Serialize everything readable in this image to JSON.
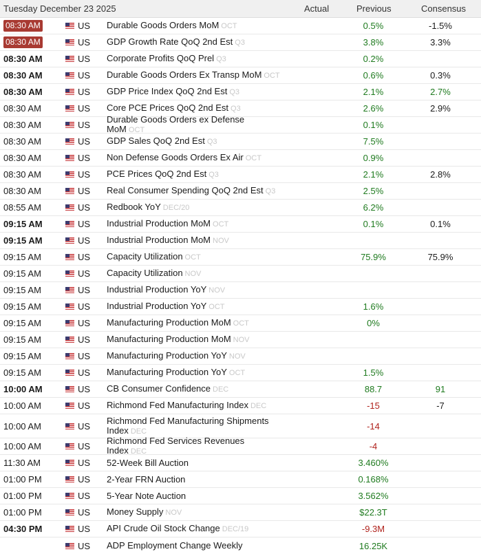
{
  "header": {
    "date": "Tuesday December 23 2025",
    "actual": "Actual",
    "previous": "Previous",
    "consensus": "Consensus"
  },
  "colors": {
    "positive": "#1e7a1e",
    "negative": "#b0221c",
    "badge": "#a83a32"
  },
  "rows": [
    {
      "time": "08:30 AM",
      "style": "badge",
      "flag": "us-flag-icon",
      "country": "US",
      "event": "Durable Goods Orders MoM",
      "period": "OCT",
      "actual": "",
      "previous": "0.5%",
      "previous_color": "green",
      "consensus": "-1.5%",
      "consensus_color": "black"
    },
    {
      "time": "08:30 AM",
      "style": "badge",
      "flag": "us-flag-icon",
      "country": "US",
      "event": "GDP Growth Rate QoQ 2nd Est",
      "period": "Q3",
      "actual": "",
      "previous": "3.8%",
      "previous_color": "green",
      "consensus": "3.3%",
      "consensus_color": "black"
    },
    {
      "time": "08:30 AM",
      "style": "bold",
      "flag": "us-flag-icon",
      "country": "US",
      "event": "Corporate Profits QoQ Prel",
      "period": "Q3",
      "actual": "",
      "previous": "0.2%",
      "previous_color": "green",
      "consensus": "",
      "consensus_color": "black"
    },
    {
      "time": "08:30 AM",
      "style": "bold",
      "flag": "us-flag-icon",
      "country": "US",
      "event": "Durable Goods Orders Ex Transp MoM",
      "period": "OCT",
      "actual": "",
      "previous": "0.6%",
      "previous_color": "green",
      "consensus": "0.3%",
      "consensus_color": "black"
    },
    {
      "time": "08:30 AM",
      "style": "bold",
      "flag": "us-flag-icon",
      "country": "US",
      "event": "GDP Price Index QoQ 2nd Est",
      "period": "Q3",
      "actual": "",
      "previous": "2.1%",
      "previous_color": "green",
      "consensus": "2.7%",
      "consensus_color": "green"
    },
    {
      "time": "08:30 AM",
      "style": "normal",
      "flag": "us-flag-icon",
      "country": "US",
      "event": "Core PCE Prices QoQ 2nd Est",
      "period": "Q3",
      "actual": "",
      "previous": "2.6%",
      "previous_color": "green",
      "consensus": "2.9%",
      "consensus_color": "black"
    },
    {
      "time": "08:30 AM",
      "style": "normal",
      "flag": "us-flag-icon",
      "country": "US",
      "event": "Durable Goods Orders ex Defense MoM",
      "period": "OCT",
      "actual": "",
      "previous": "0.1%",
      "previous_color": "green",
      "consensus": "",
      "consensus_color": "black"
    },
    {
      "time": "08:30 AM",
      "style": "normal",
      "flag": "us-flag-icon",
      "country": "US",
      "event": "GDP Sales QoQ 2nd Est",
      "period": "Q3",
      "actual": "",
      "previous": "7.5%",
      "previous_color": "green",
      "consensus": "",
      "consensus_color": "black"
    },
    {
      "time": "08:30 AM",
      "style": "normal",
      "flag": "us-flag-icon",
      "country": "US",
      "event": "Non Defense Goods Orders Ex Air",
      "period": "OCT",
      "actual": "",
      "previous": "0.9%",
      "previous_color": "green",
      "consensus": "",
      "consensus_color": "black"
    },
    {
      "time": "08:30 AM",
      "style": "normal",
      "flag": "us-flag-icon",
      "country": "US",
      "event": "PCE Prices QoQ 2nd Est",
      "period": "Q3",
      "actual": "",
      "previous": "2.1%",
      "previous_color": "green",
      "consensus": "2.8%",
      "consensus_color": "black"
    },
    {
      "time": "08:30 AM",
      "style": "normal",
      "flag": "us-flag-icon",
      "country": "US",
      "event": "Real Consumer Spending QoQ 2nd Est",
      "period": "Q3",
      "actual": "",
      "previous": "2.5%",
      "previous_color": "green",
      "consensus": "",
      "consensus_color": "black"
    },
    {
      "time": "08:55 AM",
      "style": "normal",
      "flag": "us-flag-icon",
      "country": "US",
      "event": "Redbook YoY",
      "period": "DEC/20",
      "actual": "",
      "previous": "6.2%",
      "previous_color": "green",
      "consensus": "",
      "consensus_color": "black"
    },
    {
      "time": "09:15 AM",
      "style": "bold",
      "flag": "us-flag-icon",
      "country": "US",
      "event": "Industrial Production MoM",
      "period": "OCT",
      "actual": "",
      "previous": "0.1%",
      "previous_color": "green",
      "consensus": "0.1%",
      "consensus_color": "black"
    },
    {
      "time": "09:15 AM",
      "style": "bold",
      "flag": "us-flag-icon",
      "country": "US",
      "event": "Industrial Production MoM",
      "period": "NOV",
      "actual": "",
      "previous": "",
      "previous_color": "green",
      "consensus": "",
      "consensus_color": "black"
    },
    {
      "time": "09:15 AM",
      "style": "normal",
      "flag": "us-flag-icon",
      "country": "US",
      "event": "Capacity Utilization",
      "period": "OCT",
      "actual": "",
      "previous": "75.9%",
      "previous_color": "green",
      "consensus": "75.9%",
      "consensus_color": "black"
    },
    {
      "time": "09:15 AM",
      "style": "normal",
      "flag": "us-flag-icon",
      "country": "US",
      "event": "Capacity Utilization",
      "period": "NOV",
      "actual": "",
      "previous": "",
      "previous_color": "green",
      "consensus": "",
      "consensus_color": "black"
    },
    {
      "time": "09:15 AM",
      "style": "normal",
      "flag": "us-flag-icon",
      "country": "US",
      "event": "Industrial Production YoY",
      "period": "NOV",
      "actual": "",
      "previous": "",
      "previous_color": "green",
      "consensus": "",
      "consensus_color": "black"
    },
    {
      "time": "09:15 AM",
      "style": "normal",
      "flag": "us-flag-icon",
      "country": "US",
      "event": "Industrial Production YoY",
      "period": "OCT",
      "actual": "",
      "previous": "1.6%",
      "previous_color": "green",
      "consensus": "",
      "consensus_color": "black"
    },
    {
      "time": "09:15 AM",
      "style": "normal",
      "flag": "us-flag-icon",
      "country": "US",
      "event": "Manufacturing Production MoM",
      "period": "OCT",
      "actual": "",
      "previous": "0%",
      "previous_color": "green",
      "consensus": "",
      "consensus_color": "black"
    },
    {
      "time": "09:15 AM",
      "style": "normal",
      "flag": "us-flag-icon",
      "country": "US",
      "event": "Manufacturing Production MoM",
      "period": "NOV",
      "actual": "",
      "previous": "",
      "previous_color": "green",
      "consensus": "",
      "consensus_color": "black"
    },
    {
      "time": "09:15 AM",
      "style": "normal",
      "flag": "us-flag-icon",
      "country": "US",
      "event": "Manufacturing Production YoY",
      "period": "NOV",
      "actual": "",
      "previous": "",
      "previous_color": "green",
      "consensus": "",
      "consensus_color": "black"
    },
    {
      "time": "09:15 AM",
      "style": "normal",
      "flag": "us-flag-icon",
      "country": "US",
      "event": "Manufacturing Production YoY",
      "period": "OCT",
      "actual": "",
      "previous": "1.5%",
      "previous_color": "green",
      "consensus": "",
      "consensus_color": "black"
    },
    {
      "time": "10:00 AM",
      "style": "bold",
      "flag": "us-flag-icon",
      "country": "US",
      "event": "CB Consumer Confidence",
      "period": "DEC",
      "actual": "",
      "previous": "88.7",
      "previous_color": "green",
      "consensus": "91",
      "consensus_color": "green"
    },
    {
      "time": "10:00 AM",
      "style": "normal",
      "flag": "us-flag-icon",
      "country": "US",
      "event": "Richmond Fed Manufacturing Index",
      "period": "DEC",
      "actual": "",
      "previous": "-15",
      "previous_color": "red",
      "consensus": "-7",
      "consensus_color": "black"
    },
    {
      "time": "10:00 AM",
      "style": "normal",
      "flag": "us-flag-icon",
      "country": "US",
      "event": "Richmond Fed Manufacturing Shipments Index",
      "period": "DEC",
      "actual": "",
      "previous": "-14",
      "previous_color": "red",
      "consensus": "",
      "consensus_color": "black",
      "tall": true
    },
    {
      "time": "10:00 AM",
      "style": "normal",
      "flag": "us-flag-icon",
      "country": "US",
      "event": "Richmond Fed Services Revenues Index",
      "period": "DEC",
      "actual": "",
      "previous": "-4",
      "previous_color": "red",
      "consensus": "",
      "consensus_color": "black"
    },
    {
      "time": "11:30 AM",
      "style": "normal",
      "flag": "us-flag-icon",
      "country": "US",
      "event": "52-Week Bill Auction",
      "period": "",
      "actual": "",
      "previous": "3.460%",
      "previous_color": "green",
      "consensus": "",
      "consensus_color": "black"
    },
    {
      "time": "01:00 PM",
      "style": "normal",
      "flag": "us-flag-icon",
      "country": "US",
      "event": "2-Year FRN Auction",
      "period": "",
      "actual": "",
      "previous": "0.168%",
      "previous_color": "green",
      "consensus": "",
      "consensus_color": "black"
    },
    {
      "time": "01:00 PM",
      "style": "normal",
      "flag": "us-flag-icon",
      "country": "US",
      "event": "5-Year Note Auction",
      "period": "",
      "actual": "",
      "previous": "3.562%",
      "previous_color": "green",
      "consensus": "",
      "consensus_color": "black"
    },
    {
      "time": "01:00 PM",
      "style": "normal",
      "flag": "us-flag-icon",
      "country": "US",
      "event": "Money Supply",
      "period": "NOV",
      "actual": "",
      "previous": "$22.3T",
      "previous_color": "green",
      "consensus": "",
      "consensus_color": "black"
    },
    {
      "time": "04:30 PM",
      "style": "bold",
      "flag": "us-flag-icon",
      "country": "US",
      "event": "API Crude Oil Stock Change",
      "period": "DEC/19",
      "actual": "",
      "previous": "-9.3M",
      "previous_color": "red",
      "consensus": "",
      "consensus_color": "black"
    },
    {
      "time": "",
      "style": "normal",
      "flag": "us-flag-icon",
      "country": "US",
      "event": "ADP Employment Change Weekly",
      "period": "",
      "actual": "",
      "previous": "16.25K",
      "previous_color": "green",
      "consensus": "",
      "consensus_color": "black"
    }
  ]
}
